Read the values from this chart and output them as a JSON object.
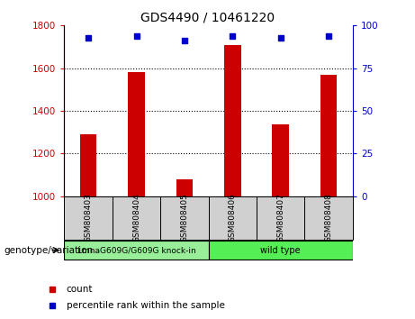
{
  "title": "GDS4490 / 10461220",
  "samples": [
    "GSM808403",
    "GSM808404",
    "GSM808405",
    "GSM808406",
    "GSM808407",
    "GSM808408"
  ],
  "counts": [
    1290,
    1580,
    1080,
    1710,
    1335,
    1570
  ],
  "percentile_ranks": [
    93,
    94,
    91,
    94,
    93,
    94
  ],
  "ylim_left": [
    1000,
    1800
  ],
  "ylim_right": [
    0,
    100
  ],
  "yticks_left": [
    1000,
    1200,
    1400,
    1600,
    1800
  ],
  "yticks_right": [
    0,
    25,
    50,
    75,
    100
  ],
  "bar_color": "#cc0000",
  "dot_color": "#0000cc",
  "group1_label": "LmnaG609G/G609G knock-in",
  "group2_label": "wild type",
  "group1_color": "#99ee99",
  "group2_color": "#55ee55",
  "group1_indices": [
    0,
    1,
    2
  ],
  "group2_indices": [
    3,
    4,
    5
  ],
  "xlabel_bottom": "genotype/variation",
  "legend_count": "count",
  "legend_percentile": "percentile rank within the sample",
  "bar_width": 0.35,
  "left_tick_color": "#cc0000",
  "right_tick_color": "#0000cc",
  "grid_color": "black",
  "bg_sample": "#d0d0d0",
  "plot_bg": "#ffffff"
}
